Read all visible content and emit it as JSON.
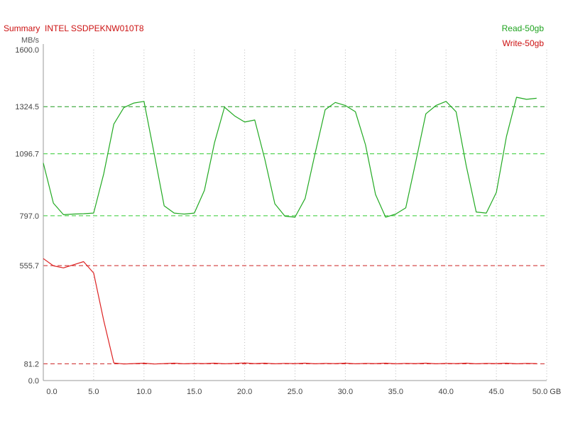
{
  "chart_data": {
    "type": "line",
    "title": "Summary  INTEL SSDPEKNW010T8",
    "ylabel": "MB/s",
    "x_unit": "GB",
    "xlim": [
      0,
      50
    ],
    "ylim": [
      0,
      1600
    ],
    "x_ticks": [
      "0.0",
      "5.0",
      "10.0",
      "15.0",
      "20.0",
      "25.0",
      "30.0",
      "35.0",
      "40.0",
      "45.0",
      "50.0"
    ],
    "y_ticks": [
      "1600.0",
      "1324.5",
      "1096.7",
      "797.0",
      "555.7",
      "81.2",
      "0.0"
    ],
    "legend_position": "top-right",
    "grid": true,
    "series": [
      {
        "name": "Read-50gb",
        "color": "#22aa22",
        "x": [
          0,
          1,
          2,
          3,
          4,
          5,
          6,
          7,
          8,
          9,
          10,
          11,
          12,
          13,
          14,
          15,
          16,
          17,
          18,
          19,
          20,
          21,
          22,
          23,
          24,
          25,
          26,
          27,
          28,
          29,
          30,
          31,
          32,
          33,
          34,
          35,
          36,
          37,
          38,
          39,
          40,
          41,
          42,
          43,
          44,
          45,
          46,
          47,
          48,
          49
        ],
        "y": [
          1052,
          858,
          802,
          805,
          807,
          810,
          1000,
          1240,
          1320,
          1342,
          1350,
          1100,
          845,
          810,
          805,
          810,
          920,
          1150,
          1322,
          1280,
          1250,
          1260,
          1070,
          855,
          795,
          790,
          880,
          1100,
          1310,
          1345,
          1330,
          1300,
          1140,
          900,
          790,
          805,
          835,
          1060,
          1290,
          1330,
          1350,
          1300,
          1040,
          815,
          810,
          910,
          1180,
          1370,
          1360,
          1365
        ]
      },
      {
        "name": "Write-50gb",
        "color": "#dd2222",
        "x": [
          0,
          1,
          2,
          3,
          4,
          5,
          6,
          7,
          8,
          9,
          10,
          11,
          12,
          13,
          14,
          15,
          16,
          17,
          18,
          19,
          20,
          21,
          22,
          23,
          24,
          25,
          26,
          27,
          28,
          29,
          30,
          31,
          32,
          33,
          34,
          35,
          36,
          37,
          38,
          39,
          40,
          41,
          42,
          43,
          44,
          45,
          46,
          47,
          48,
          49
        ],
        "y": [
          590,
          555,
          545,
          560,
          575,
          520,
          290,
          85,
          80,
          82,
          84,
          80,
          82,
          84,
          81,
          83,
          82,
          84,
          81,
          83,
          85,
          82,
          84,
          81,
          83,
          82,
          84,
          81,
          83,
          82,
          84,
          81,
          83,
          82,
          84,
          81,
          83,
          82,
          84,
          81,
          83,
          82,
          84,
          81,
          83,
          82,
          84,
          81,
          83,
          82
        ]
      }
    ]
  }
}
